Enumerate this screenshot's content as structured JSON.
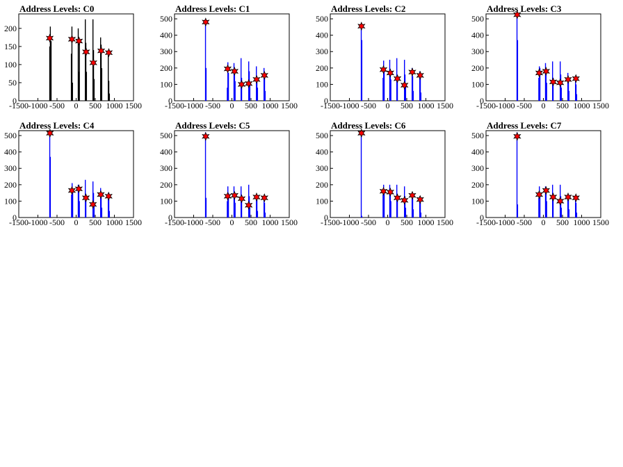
{
  "chart_data": [
    {
      "title": "Address Levels: C0",
      "type": "histogram",
      "xlim": [
        -1500,
        1500
      ],
      "ylim": [
        0,
        240
      ],
      "xticks": [
        "-1500",
        "-1000",
        "-500",
        "0",
        "500",
        "1000",
        "1500"
      ],
      "yticks": [
        "0",
        "50",
        "100",
        "150",
        "200"
      ],
      "bar_color": "#000000",
      "bars": [
        [
          -690,
          150
        ],
        [
          -675,
          205
        ],
        [
          -665,
          100
        ],
        [
          -655,
          165
        ],
        [
          -125,
          130
        ],
        [
          -110,
          205
        ],
        [
          -95,
          50
        ],
        [
          55,
          200
        ],
        [
          70,
          80
        ],
        [
          85,
          160
        ],
        [
          240,
          225
        ],
        [
          255,
          160
        ],
        [
          270,
          80
        ],
        [
          440,
          225
        ],
        [
          455,
          140
        ],
        [
          470,
          60
        ],
        [
          640,
          175
        ],
        [
          655,
          155
        ],
        [
          670,
          90
        ],
        [
          840,
          130
        ],
        [
          855,
          55
        ],
        [
          870,
          20
        ]
      ],
      "markers": [
        [
          -690,
          173
        ],
        [
          -110,
          170
        ],
        [
          75,
          165
        ],
        [
          260,
          135
        ],
        [
          450,
          105
        ],
        [
          655,
          138
        ],
        [
          855,
          133
        ]
      ],
      "marker_color": "#ff0000"
    },
    {
      "title": "Address Levels: C1",
      "type": "histogram",
      "xlim": [
        -1500,
        1500
      ],
      "ylim": [
        0,
        530
      ],
      "xticks": [
        "-1500",
        "-1000",
        "-500",
        "0",
        "500",
        "1000",
        "1500"
      ],
      "yticks": [
        "0",
        "100",
        "200",
        "300",
        "400",
        "500"
      ],
      "bar_color": "#0000ff",
      "bars": [
        [
          -690,
          500
        ],
        [
          -675,
          200
        ],
        [
          -120,
          80
        ],
        [
          -105,
          235
        ],
        [
          -90,
          170
        ],
        [
          55,
          230
        ],
        [
          70,
          200
        ],
        [
          85,
          120
        ],
        [
          240,
          260
        ],
        [
          255,
          140
        ],
        [
          440,
          240
        ],
        [
          455,
          180
        ],
        [
          470,
          100
        ],
        [
          640,
          210
        ],
        [
          655,
          150
        ],
        [
          670,
          80
        ],
        [
          840,
          200
        ],
        [
          855,
          160
        ],
        [
          870,
          60
        ]
      ],
      "markers": [
        [
          -685,
          480
        ],
        [
          -110,
          195
        ],
        [
          70,
          180
        ],
        [
          255,
          100
        ],
        [
          440,
          105
        ],
        [
          645,
          130
        ],
        [
          850,
          155
        ]
      ],
      "marker_color": "#ff0000"
    },
    {
      "title": "Address Levels: C2",
      "type": "histogram",
      "xlim": [
        -1500,
        1500
      ],
      "ylim": [
        0,
        530
      ],
      "xticks": [
        "-1500",
        "-1000",
        "-500",
        "0",
        "500",
        "1000",
        "1500"
      ],
      "yticks": [
        "0",
        "100",
        "200",
        "300",
        "400",
        "500"
      ],
      "bar_color": "#0000ff",
      "bars": [
        [
          -690,
          470
        ],
        [
          -675,
          370
        ],
        [
          -120,
          140
        ],
        [
          -105,
          245
        ],
        [
          -90,
          200
        ],
        [
          55,
          250
        ],
        [
          70,
          190
        ],
        [
          85,
          130
        ],
        [
          240,
          260
        ],
        [
          255,
          150
        ],
        [
          440,
          250
        ],
        [
          455,
          160
        ],
        [
          470,
          90
        ],
        [
          640,
          200
        ],
        [
          655,
          150
        ],
        [
          670,
          60
        ],
        [
          840,
          180
        ],
        [
          855,
          140
        ],
        [
          870,
          50
        ]
      ],
      "markers": [
        [
          -685,
          455
        ],
        [
          -110,
          190
        ],
        [
          70,
          170
        ],
        [
          255,
          135
        ],
        [
          440,
          95
        ],
        [
          645,
          175
        ],
        [
          850,
          155
        ]
      ],
      "marker_color": "#ff0000"
    },
    {
      "title": "Address Levels: C3",
      "type": "histogram",
      "xlim": [
        -1500,
        1500
      ],
      "ylim": [
        0,
        530
      ],
      "xticks": [
        "-1500",
        "-1000",
        "-500",
        "0",
        "500",
        "1000",
        "1500"
      ],
      "yticks": [
        "0",
        "100",
        "200",
        "300",
        "400",
        "500"
      ],
      "bar_color": "#0000ff",
      "bars": [
        [
          -690,
          540
        ],
        [
          -675,
          370
        ],
        [
          -120,
          140
        ],
        [
          -105,
          210
        ],
        [
          -90,
          200
        ],
        [
          55,
          230
        ],
        [
          70,
          170
        ],
        [
          85,
          110
        ],
        [
          240,
          240
        ],
        [
          255,
          140
        ],
        [
          440,
          240
        ],
        [
          455,
          160
        ],
        [
          470,
          80
        ],
        [
          640,
          170
        ],
        [
          655,
          130
        ],
        [
          670,
          60
        ],
        [
          840,
          150
        ],
        [
          855,
          100
        ],
        [
          870,
          40
        ]
      ],
      "markers": [
        [
          -685,
          525
        ],
        [
          -110,
          170
        ],
        [
          70,
          180
        ],
        [
          255,
          115
        ],
        [
          440,
          110
        ],
        [
          645,
          130
        ],
        [
          850,
          135
        ]
      ],
      "marker_color": "#ff0000"
    },
    {
      "title": "Address Levels: C4",
      "type": "histogram",
      "xlim": [
        -1500,
        1500
      ],
      "ylim": [
        0,
        530
      ],
      "xticks": [
        "-1500",
        "-1000",
        "-500",
        "0",
        "500",
        "1000",
        "1500"
      ],
      "yticks": [
        "0",
        "100",
        "200",
        "300",
        "400",
        "500"
      ],
      "bar_color": "#0000ff",
      "bars": [
        [
          -690,
          520
        ],
        [
          -675,
          370
        ],
        [
          -120,
          140
        ],
        [
          -105,
          210
        ],
        [
          -90,
          170
        ],
        [
          55,
          200
        ],
        [
          70,
          160
        ],
        [
          85,
          100
        ],
        [
          240,
          230
        ],
        [
          255,
          140
        ],
        [
          440,
          220
        ],
        [
          455,
          150
        ],
        [
          470,
          70
        ],
        [
          640,
          180
        ],
        [
          655,
          140
        ],
        [
          670,
          60
        ],
        [
          840,
          150
        ],
        [
          855,
          110
        ],
        [
          870,
          40
        ]
      ],
      "markers": [
        [
          -685,
          515
        ],
        [
          -110,
          165
        ],
        [
          70,
          175
        ],
        [
          255,
          120
        ],
        [
          440,
          80
        ],
        [
          645,
          140
        ],
        [
          850,
          130
        ]
      ],
      "marker_color": "#ff0000"
    },
    {
      "title": "Address Levels: C5",
      "type": "histogram",
      "xlim": [
        -1500,
        1500
      ],
      "ylim": [
        0,
        530
      ],
      "xticks": [
        "-1500",
        "-1000",
        "-500",
        "0",
        "500",
        "1000",
        "1500"
      ],
      "yticks": [
        "0",
        "100",
        "200",
        "300",
        "400",
        "500"
      ],
      "bar_color": "#0000ff",
      "bars": [
        [
          -690,
          520
        ],
        [
          -675,
          120
        ],
        [
          -120,
          100
        ],
        [
          -105,
          190
        ],
        [
          -90,
          150
        ],
        [
          55,
          190
        ],
        [
          70,
          150
        ],
        [
          85,
          90
        ],
        [
          240,
          190
        ],
        [
          255,
          110
        ],
        [
          440,
          200
        ],
        [
          455,
          130
        ],
        [
          470,
          60
        ],
        [
          640,
          140
        ],
        [
          655,
          110
        ],
        [
          670,
          40
        ],
        [
          840,
          130
        ],
        [
          855,
          90
        ],
        [
          870,
          30
        ]
      ],
      "markers": [
        [
          -685,
          495
        ],
        [
          -110,
          130
        ],
        [
          70,
          135
        ],
        [
          255,
          115
        ],
        [
          440,
          75
        ],
        [
          645,
          125
        ],
        [
          850,
          120
        ]
      ],
      "marker_color": "#ff0000"
    },
    {
      "title": "Address Levels: C6",
      "type": "histogram",
      "xlim": [
        -1500,
        1500
      ],
      "ylim": [
        0,
        530
      ],
      "xticks": [
        "-1500",
        "-1000",
        "-500",
        "0",
        "500",
        "1000",
        "1500"
      ],
      "yticks": [
        "0",
        "100",
        "200",
        "300",
        "400",
        "500"
      ],
      "bar_color": "#0000ff",
      "bars": [
        [
          -690,
          520
        ],
        [
          -675,
          10
        ],
        [
          -120,
          140
        ],
        [
          -105,
          200
        ],
        [
          -90,
          160
        ],
        [
          55,
          200
        ],
        [
          70,
          160
        ],
        [
          85,
          100
        ],
        [
          240,
          200
        ],
        [
          255,
          120
        ],
        [
          440,
          190
        ],
        [
          455,
          130
        ],
        [
          470,
          60
        ],
        [
          640,
          150
        ],
        [
          655,
          120
        ],
        [
          670,
          50
        ],
        [
          840,
          130
        ],
        [
          855,
          90
        ],
        [
          870,
          30
        ]
      ],
      "markers": [
        [
          -685,
          515
        ],
        [
          -110,
          160
        ],
        [
          70,
          155
        ],
        [
          255,
          120
        ],
        [
          440,
          105
        ],
        [
          645,
          135
        ],
        [
          850,
          110
        ]
      ],
      "marker_color": "#ff0000"
    },
    {
      "title": "Address Levels: C7",
      "type": "histogram",
      "xlim": [
        -1500,
        1500
      ],
      "ylim": [
        0,
        530
      ],
      "xticks": [
        "-1500",
        "-1000",
        "-500",
        "0",
        "500",
        "1000",
        "1500"
      ],
      "yticks": [
        "0",
        "100",
        "200",
        "300",
        "400",
        "500"
      ],
      "bar_color": "#0000ff",
      "bars": [
        [
          -690,
          520
        ],
        [
          -675,
          80
        ],
        [
          -120,
          120
        ],
        [
          -105,
          190
        ],
        [
          -90,
          150
        ],
        [
          55,
          190
        ],
        [
          70,
          160
        ],
        [
          85,
          100
        ],
        [
          240,
          200
        ],
        [
          255,
          120
        ],
        [
          440,
          200
        ],
        [
          455,
          130
        ],
        [
          470,
          60
        ],
        [
          640,
          140
        ],
        [
          655,
          110
        ],
        [
          670,
          50
        ],
        [
          840,
          130
        ],
        [
          855,
          90
        ],
        [
          870,
          30
        ]
      ],
      "markers": [
        [
          -685,
          495
        ],
        [
          -110,
          140
        ],
        [
          70,
          165
        ],
        [
          255,
          125
        ],
        [
          440,
          100
        ],
        [
          645,
          125
        ],
        [
          850,
          120
        ]
      ],
      "marker_color": "#ff0000"
    }
  ]
}
